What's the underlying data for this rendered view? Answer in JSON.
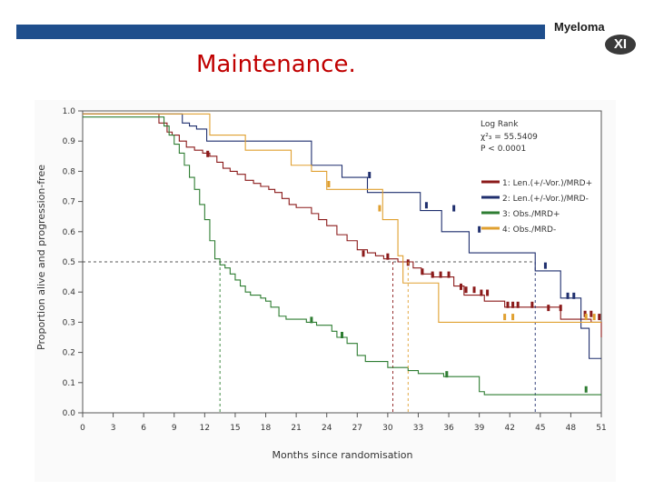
{
  "header": {
    "title": "Maintenance."
  },
  "logo": {
    "name": "Myeloma",
    "badge": "XI",
    "colors": {
      "bar": "#1f4e8c"
    }
  },
  "chart_data": {
    "type": "line",
    "subtype": "kaplan-meier",
    "xlabel": "Months since randomisation",
    "ylabel": "Proportion alive and progression-free",
    "xlim": [
      0,
      51
    ],
    "ylim": [
      0,
      1
    ],
    "xticks": [
      "0",
      "3",
      "6",
      "9",
      "12",
      "15",
      "18",
      "21",
      "24",
      "27",
      "30",
      "33",
      "36",
      "39",
      "42",
      "45",
      "48",
      "51"
    ],
    "yticks": [
      "0.0",
      "0.1",
      "0.2",
      "0.3",
      "0.4",
      "0.5",
      "0.6",
      "0.7",
      "0.8",
      "0.9",
      "1.0"
    ],
    "median_line": 0.5,
    "stats": {
      "heading": "Log Rank",
      "chi": "χ²₃ = 55.5409",
      "p": "P < 0.0001"
    },
    "series": [
      {
        "name": "1: Len.(+/-Vor.)/MRD+",
        "color": "#8b1a1a",
        "median": 30.5,
        "steps": [
          [
            0,
            0.99
          ],
          [
            7,
            0.99
          ],
          [
            7.5,
            0.96
          ],
          [
            8.3,
            0.93
          ],
          [
            8.8,
            0.92
          ],
          [
            9.5,
            0.9
          ],
          [
            10.2,
            0.88
          ],
          [
            11,
            0.87
          ],
          [
            11.8,
            0.86
          ],
          [
            12.5,
            0.85
          ],
          [
            13.2,
            0.83
          ],
          [
            13.8,
            0.81
          ],
          [
            14.5,
            0.8
          ],
          [
            15.2,
            0.79
          ],
          [
            16,
            0.77
          ],
          [
            16.8,
            0.76
          ],
          [
            17.5,
            0.75
          ],
          [
            18.3,
            0.74
          ],
          [
            18.9,
            0.73
          ],
          [
            19.6,
            0.71
          ],
          [
            20.3,
            0.69
          ],
          [
            21,
            0.68
          ],
          [
            22.5,
            0.66
          ],
          [
            23.2,
            0.64
          ],
          [
            24,
            0.62
          ],
          [
            25,
            0.59
          ],
          [
            26,
            0.57
          ],
          [
            27,
            0.54
          ],
          [
            28,
            0.53
          ],
          [
            28.8,
            0.52
          ],
          [
            29.6,
            0.51
          ],
          [
            31,
            0.5
          ],
          [
            32.5,
            0.48
          ],
          [
            33.3,
            0.46
          ],
          [
            34.5,
            0.45
          ],
          [
            36.5,
            0.42
          ],
          [
            37.5,
            0.39
          ],
          [
            39.5,
            0.37
          ],
          [
            41.5,
            0.35
          ],
          [
            47,
            0.31
          ],
          [
            50,
            0.3
          ],
          [
            51,
            0.25
          ]
        ],
        "censors": [
          [
            12.3,
            0.85
          ],
          [
            27.6,
            0.52
          ],
          [
            30,
            0.51
          ],
          [
            32,
            0.49
          ],
          [
            33.4,
            0.46
          ],
          [
            34.4,
            0.45
          ],
          [
            35.2,
            0.45
          ],
          [
            36,
            0.45
          ],
          [
            37.2,
            0.41
          ],
          [
            37.7,
            0.4
          ],
          [
            38.5,
            0.4
          ],
          [
            39.2,
            0.39
          ],
          [
            39.8,
            0.39
          ],
          [
            41.8,
            0.35
          ],
          [
            42.3,
            0.35
          ],
          [
            42.8,
            0.35
          ],
          [
            44.2,
            0.35
          ],
          [
            45.8,
            0.34
          ],
          [
            47,
            0.34
          ],
          [
            49.4,
            0.32
          ],
          [
            50,
            0.32
          ],
          [
            50.8,
            0.31
          ]
        ]
      },
      {
        "name": "2: Len.(+/-Vor.)/MRD-",
        "color": "#1f2f6e",
        "median": 44.5,
        "steps": [
          [
            0,
            0.99
          ],
          [
            9.8,
            0.99
          ],
          [
            9.8,
            0.96
          ],
          [
            10.5,
            0.95
          ],
          [
            11.2,
            0.94
          ],
          [
            12.2,
            0.9
          ],
          [
            12.9,
            0.9
          ],
          [
            22.5,
            0.9
          ],
          [
            22.5,
            0.82
          ],
          [
            25.5,
            0.82
          ],
          [
            25.5,
            0.78
          ],
          [
            28,
            0.78
          ],
          [
            28,
            0.73
          ],
          [
            33.2,
            0.73
          ],
          [
            33.2,
            0.67
          ],
          [
            35.3,
            0.67
          ],
          [
            35.3,
            0.6
          ],
          [
            38,
            0.6
          ],
          [
            38,
            0.53
          ],
          [
            44.5,
            0.53
          ],
          [
            44.5,
            0.47
          ],
          [
            47,
            0.47
          ],
          [
            47,
            0.38
          ],
          [
            49,
            0.38
          ],
          [
            49,
            0.28
          ],
          [
            49.8,
            0.28
          ],
          [
            49.8,
            0.18
          ],
          [
            51,
            0.18
          ]
        ],
        "censors": [
          [
            28.2,
            0.78
          ],
          [
            33.8,
            0.68
          ],
          [
            36.5,
            0.67
          ],
          [
            39,
            0.6
          ],
          [
            45.5,
            0.48
          ],
          [
            47.7,
            0.38
          ],
          [
            48.3,
            0.38
          ]
        ]
      },
      {
        "name": "3: Obs./MRD+",
        "color": "#2e7d32",
        "median": 13.5,
        "steps": [
          [
            0,
            0.98
          ],
          [
            7.5,
            0.98
          ],
          [
            8,
            0.95
          ],
          [
            8.5,
            0.92
          ],
          [
            9,
            0.89
          ],
          [
            9.5,
            0.86
          ],
          [
            10,
            0.82
          ],
          [
            10.5,
            0.78
          ],
          [
            11,
            0.74
          ],
          [
            11.5,
            0.69
          ],
          [
            12,
            0.64
          ],
          [
            12.5,
            0.57
          ],
          [
            13,
            0.51
          ],
          [
            13.5,
            0.49
          ],
          [
            14,
            0.48
          ],
          [
            14.5,
            0.46
          ],
          [
            15,
            0.44
          ],
          [
            15.5,
            0.42
          ],
          [
            16,
            0.4
          ],
          [
            16.5,
            0.39
          ],
          [
            17.5,
            0.38
          ],
          [
            18,
            0.37
          ],
          [
            18.5,
            0.35
          ],
          [
            19.3,
            0.32
          ],
          [
            20,
            0.31
          ],
          [
            22,
            0.3
          ],
          [
            23,
            0.29
          ],
          [
            24.5,
            0.27
          ],
          [
            25,
            0.25
          ],
          [
            26,
            0.23
          ],
          [
            27,
            0.19
          ],
          [
            27.8,
            0.17
          ],
          [
            29.7,
            0.17
          ],
          [
            30,
            0.15
          ],
          [
            32,
            0.14
          ],
          [
            33,
            0.13
          ],
          [
            35.5,
            0.12
          ],
          [
            39,
            0.12
          ],
          [
            39,
            0.07
          ],
          [
            39.5,
            0.06
          ],
          [
            51,
            0.06
          ]
        ],
        "censors": [
          [
            22.5,
            0.3
          ],
          [
            25.5,
            0.25
          ],
          [
            35.8,
            0.12
          ],
          [
            49.5,
            0.07
          ]
        ]
      },
      {
        "name": "4: Obs./MRD-",
        "color": "#e0a030",
        "median": 32.0,
        "steps": [
          [
            0,
            0.99
          ],
          [
            12.5,
            0.99
          ],
          [
            12.5,
            0.92
          ],
          [
            16,
            0.92
          ],
          [
            16,
            0.87
          ],
          [
            20.5,
            0.87
          ],
          [
            20.5,
            0.82
          ],
          [
            22.5,
            0.82
          ],
          [
            22.5,
            0.8
          ],
          [
            24,
            0.8
          ],
          [
            24,
            0.74
          ],
          [
            29.5,
            0.74
          ],
          [
            29.5,
            0.64
          ],
          [
            31,
            0.64
          ],
          [
            31,
            0.52
          ],
          [
            31.5,
            0.52
          ],
          [
            31.5,
            0.43
          ],
          [
            35,
            0.43
          ],
          [
            35,
            0.3
          ],
          [
            51,
            0.3
          ]
        ],
        "censors": [
          [
            24.2,
            0.75
          ],
          [
            29.2,
            0.67
          ],
          [
            41.5,
            0.31
          ],
          [
            42.3,
            0.31
          ],
          [
            49.5,
            0.31
          ],
          [
            50.3,
            0.31
          ]
        ]
      }
    ]
  }
}
